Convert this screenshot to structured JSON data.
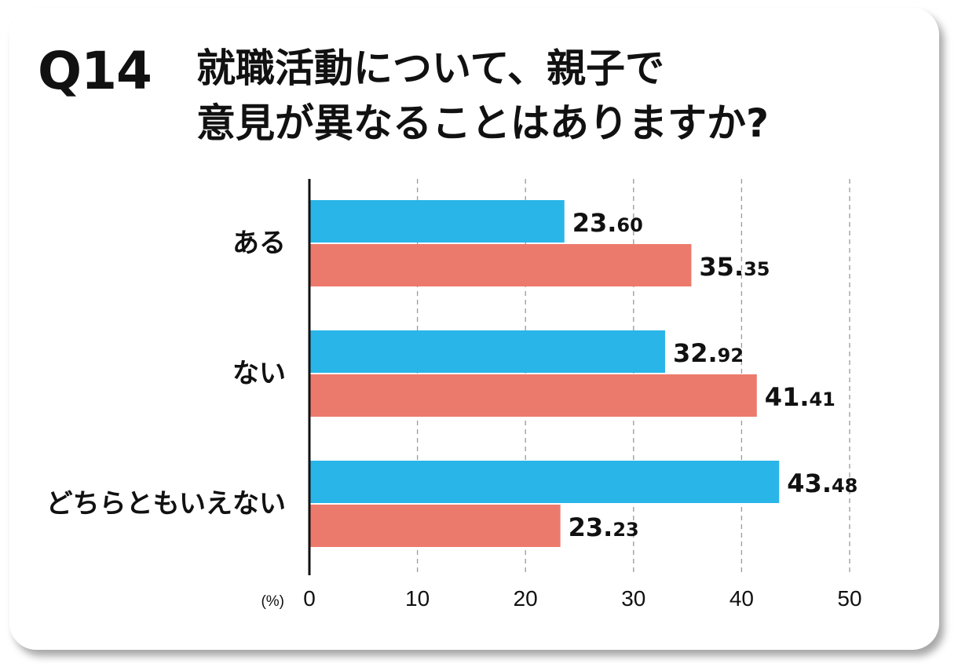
{
  "question": {
    "number": "Q14",
    "line1": "就職活動について、親子で",
    "line2": "意見が異なることはありますか?"
  },
  "chart_data": {
    "type": "bar",
    "orientation": "horizontal",
    "categories": [
      "ある",
      "ない",
      "どちらともいえない"
    ],
    "series": [
      {
        "color": "#29b5e8",
        "values": [
          23.6,
          32.92,
          43.48
        ],
        "labels": [
          "23.60",
          "32.92",
          "43.48"
        ]
      },
      {
        "color": "#ec7a6c",
        "values": [
          35.35,
          41.41,
          23.23
        ],
        "labels": [
          "35.35",
          "41.41",
          "23.23"
        ]
      }
    ],
    "xlim": [
      0,
      50
    ],
    "ticks": [
      0,
      10,
      20,
      30,
      40,
      50
    ],
    "unit_label": "(%)",
    "grid": "vertical dashed"
  }
}
